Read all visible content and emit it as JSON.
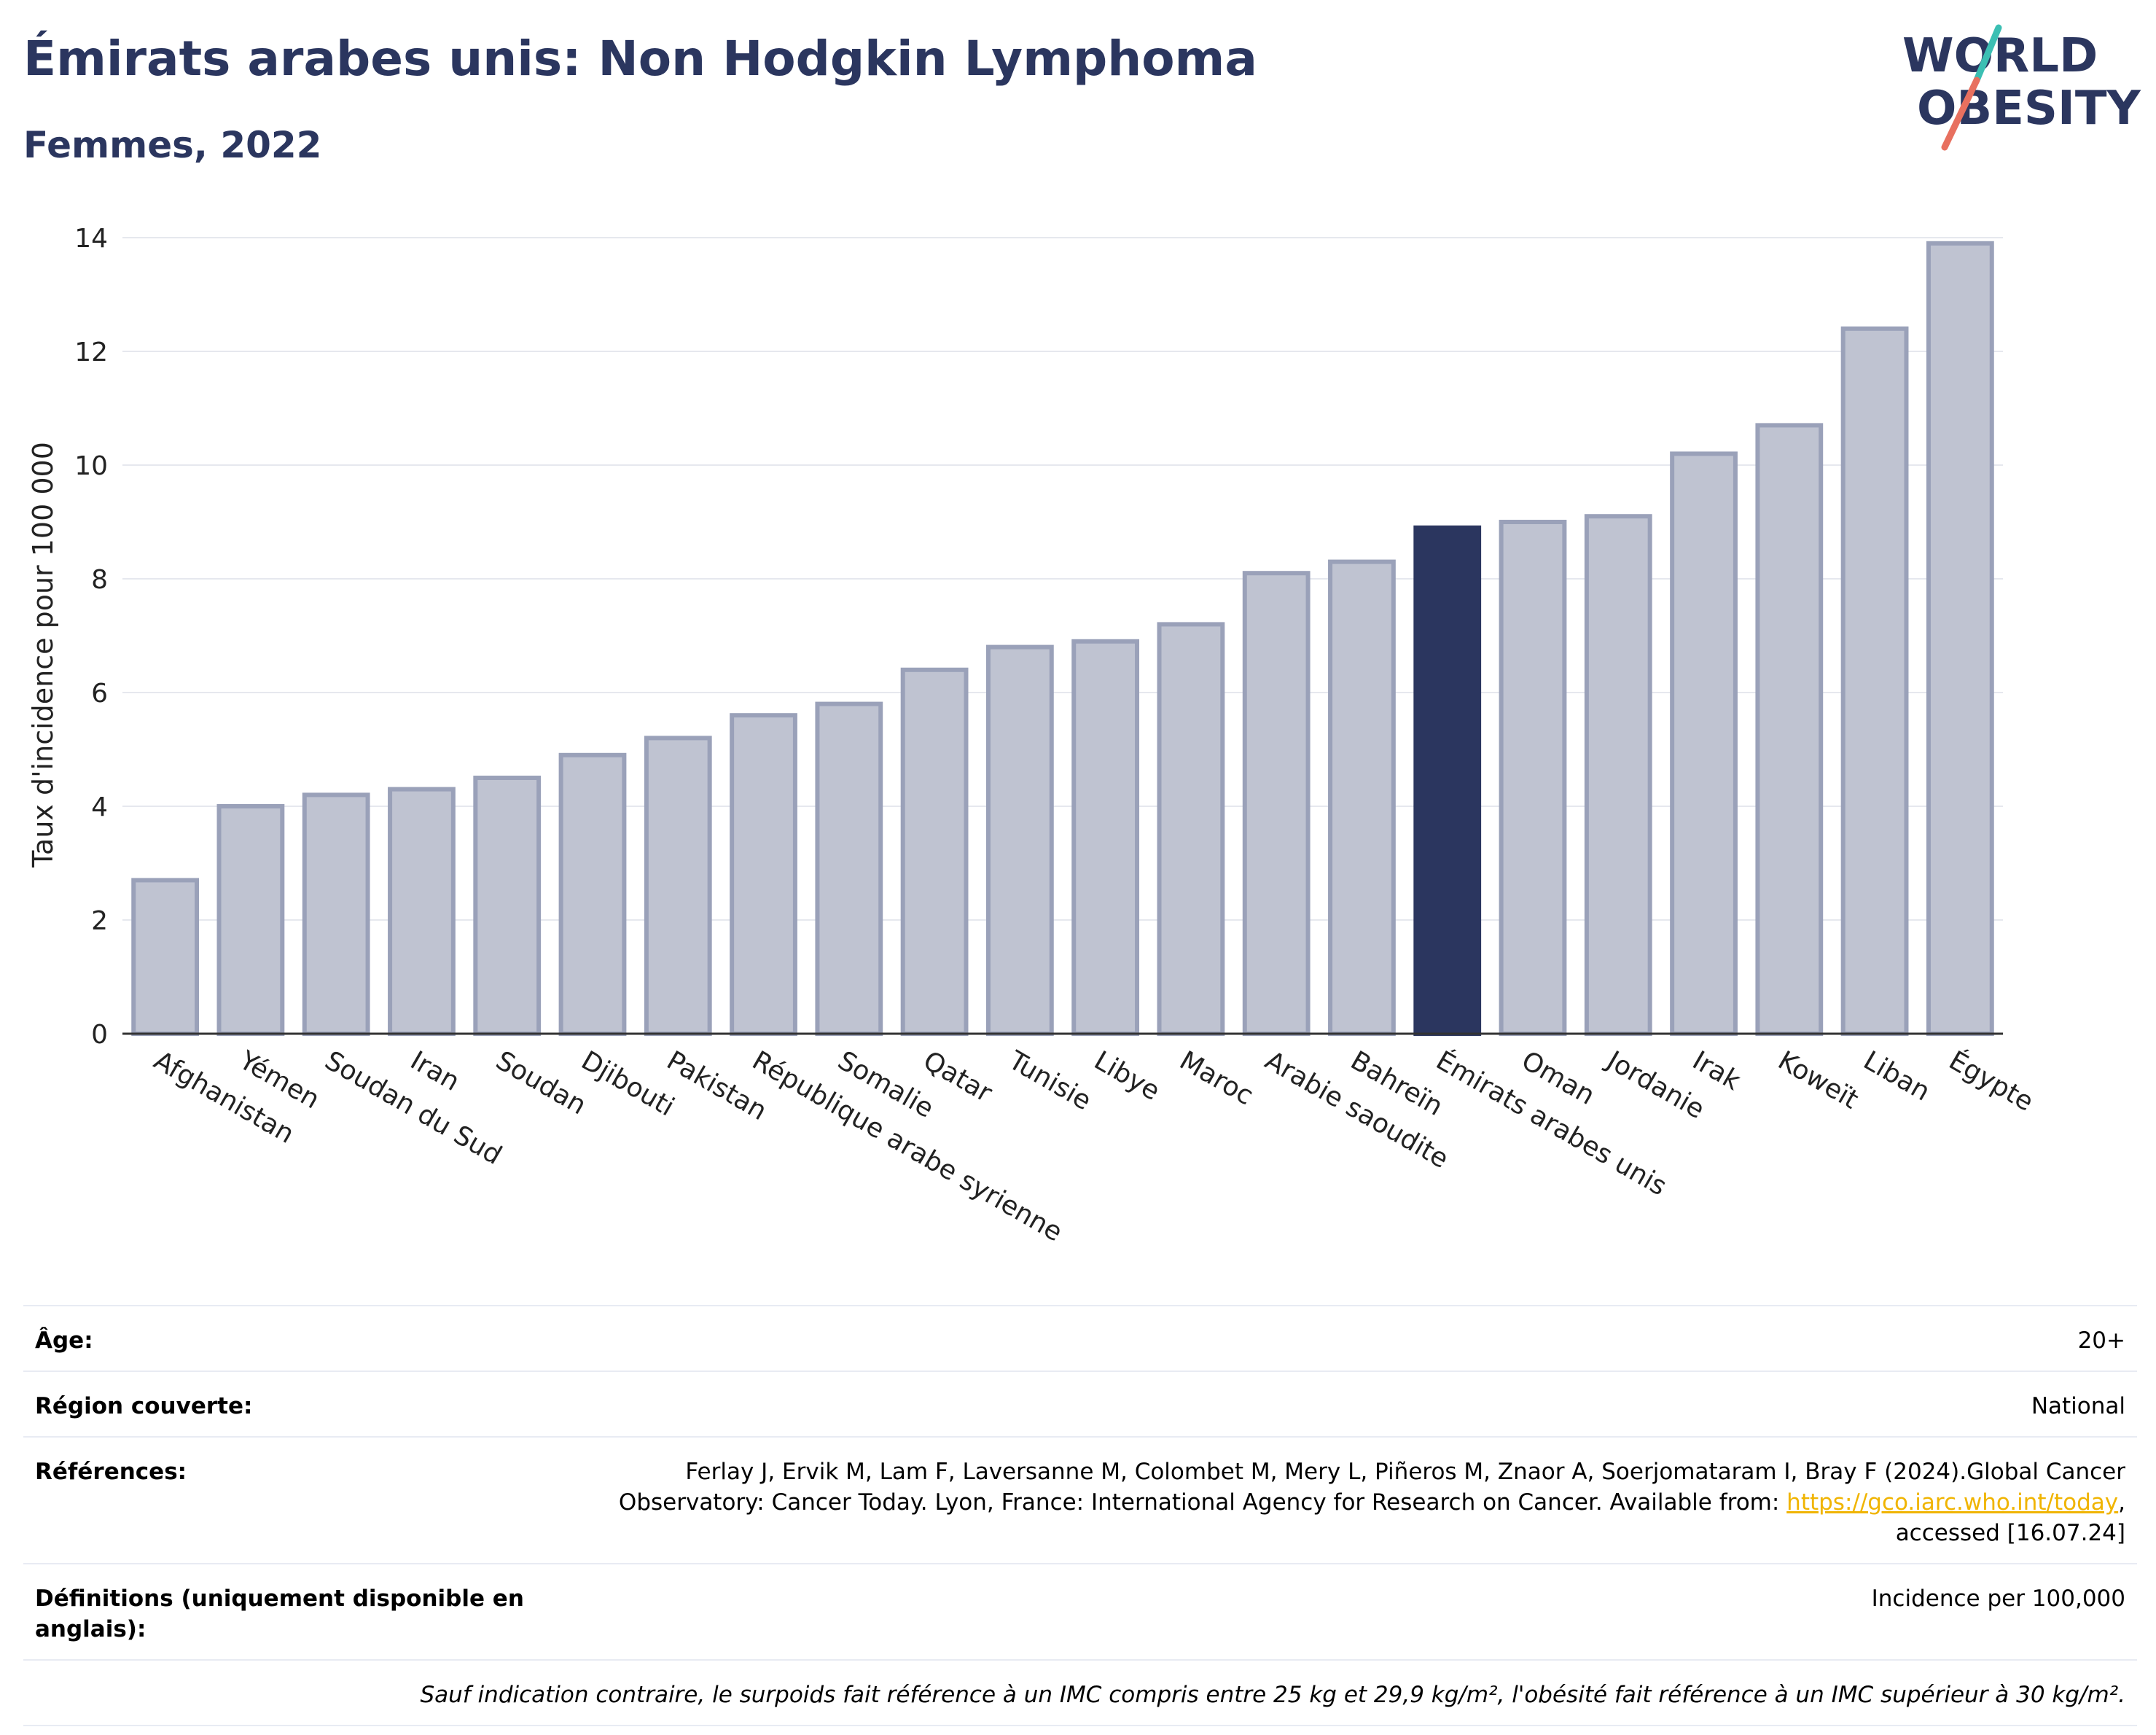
{
  "header": {
    "title": "Émirats arabes unis: Non Hodgkin Lymphoma",
    "subtitle": "Femmes, 2022"
  },
  "logo": {
    "line1": "WORLD",
    "line2": "OBESITY",
    "icon": "world-obesity-logo",
    "colors": {
      "text": "#2b365f",
      "slash_top": "#3bbfb3",
      "slash_bottom": "#e8705f"
    }
  },
  "chart_data": {
    "type": "bar",
    "title": "Émirats arabes unis: Non Hodgkin Lymphoma",
    "subtitle": "Femmes, 2022",
    "xlabel": "",
    "ylabel": "Taux d'incidence pour 100 000",
    "ylim": [
      0,
      14
    ],
    "yticks": [
      0,
      2,
      4,
      6,
      8,
      10,
      12,
      14
    ],
    "grid": true,
    "categories": [
      "Afghanistan",
      "Yémen",
      "Soudan du Sud",
      "Iran",
      "Soudan",
      "Djibouti",
      "Pakistan",
      "République arabe syrienne",
      "Somalie",
      "Qatar",
      "Tunisie",
      "Libye",
      "Maroc",
      "Arabie saoudite",
      "Bahreïn",
      "Émirats arabes unis",
      "Oman",
      "Jordanie",
      "Irak",
      "Koweït",
      "Liban",
      "Égypte"
    ],
    "values": [
      2.7,
      4.0,
      4.2,
      4.3,
      4.5,
      4.9,
      5.2,
      5.6,
      5.8,
      6.4,
      6.8,
      6.9,
      7.2,
      8.1,
      8.3,
      8.9,
      9.0,
      9.1,
      10.2,
      10.7,
      12.4,
      13.9
    ],
    "highlight": "Émirats arabes unis",
    "colors": {
      "bar": "#bfc3d1",
      "bar_edge": "#9aa1b9",
      "highlight": "#2b365f"
    }
  },
  "info": {
    "age_label": "Âge:",
    "age_value": "20+",
    "region_label": "Région couverte:",
    "region_value": "National",
    "refs_label": "Références:",
    "refs_line1": "Ferlay J, Ervik M, Lam F, Laversanne M, Colombet M, Mery L, Piñeros M, Znaor A, Soerjomataram I, Bray F (2024).Global Cancer",
    "refs_line2": "Observatory: Cancer Today. Lyon, France: International Agency for Research on Cancer. Available from: ",
    "refs_link": "https://gco.iarc.who.int/today",
    "refs_line2_end": ",",
    "refs_line3": "accessed [16.07.24]",
    "defs_label": "Définitions (uniquement disponible en anglais):",
    "defs_value": "Incidence per 100,000",
    "note": "Sauf indication contraire, le surpoids fait référence à un IMC compris entre 25 kg et 29,9 kg/m², l'obésité fait référence à un IMC supérieur à 30 kg/m²."
  }
}
